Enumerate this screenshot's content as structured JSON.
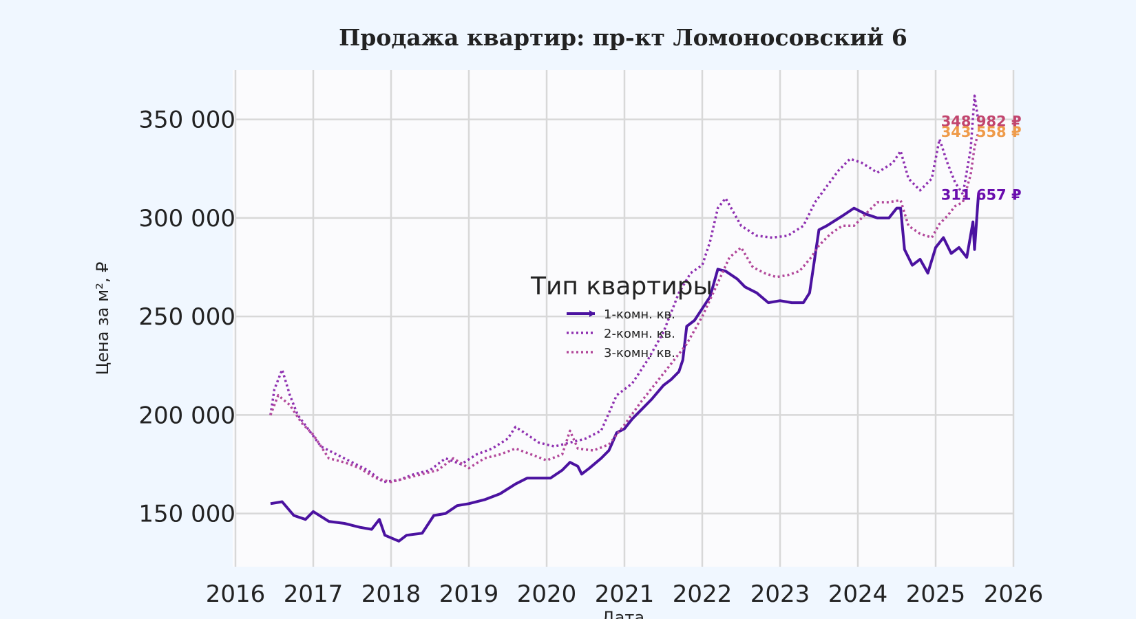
{
  "chart_data": {
    "type": "line",
    "title": "Продажа квартир: пр-кт Ломоносовский 6",
    "xlabel": "Дата",
    "ylabel": "Цена за м², ₽",
    "xlim": [
      2016,
      2026
    ],
    "ylim": [
      123000,
      375000
    ],
    "x_ticks": [
      "2016",
      "2017",
      "2018",
      "2019",
      "2020",
      "2021",
      "2022",
      "2023",
      "2024",
      "2025",
      "2026"
    ],
    "y_ticks": [
      "150 000",
      "200 000",
      "250 000",
      "300 000",
      "350 000"
    ],
    "y_tick_values": [
      150000,
      200000,
      250000,
      300000,
      350000
    ],
    "grid": true,
    "legend": {
      "title": "Тип квартиры",
      "placement": "center"
    },
    "series": [
      {
        "name": "1-комн. кв.",
        "color": "#4b12a0",
        "style": "solid",
        "end_label": "311 657 ₽",
        "end_label_color": "#6a0dad",
        "points": [
          [
            2016.45,
            155000
          ],
          [
            2016.6,
            156000
          ],
          [
            2016.75,
            149000
          ],
          [
            2016.9,
            147000
          ],
          [
            2017.0,
            151000
          ],
          [
            2017.2,
            146000
          ],
          [
            2017.4,
            145000
          ],
          [
            2017.6,
            143000
          ],
          [
            2017.75,
            142000
          ],
          [
            2017.85,
            147000
          ],
          [
            2017.92,
            139000
          ],
          [
            2018.1,
            136000
          ],
          [
            2018.2,
            139000
          ],
          [
            2018.4,
            140000
          ],
          [
            2018.55,
            149000
          ],
          [
            2018.7,
            150000
          ],
          [
            2018.85,
            154000
          ],
          [
            2019.0,
            155000
          ],
          [
            2019.2,
            157000
          ],
          [
            2019.4,
            160000
          ],
          [
            2019.6,
            165000
          ],
          [
            2019.75,
            168000
          ],
          [
            2019.9,
            168000
          ],
          [
            2020.05,
            168000
          ],
          [
            2020.2,
            172000
          ],
          [
            2020.3,
            176000
          ],
          [
            2020.4,
            174000
          ],
          [
            2020.45,
            170000
          ],
          [
            2020.55,
            173000
          ],
          [
            2020.7,
            178000
          ],
          [
            2020.8,
            182000
          ],
          [
            2020.9,
            191000
          ],
          [
            2021.0,
            193000
          ],
          [
            2021.1,
            198000
          ],
          [
            2021.2,
            202000
          ],
          [
            2021.35,
            208000
          ],
          [
            2021.5,
            215000
          ],
          [
            2021.6,
            218000
          ],
          [
            2021.7,
            222000
          ],
          [
            2021.75,
            228000
          ],
          [
            2021.8,
            245000
          ],
          [
            2021.9,
            248000
          ],
          [
            2022.0,
            254000
          ],
          [
            2022.1,
            260000
          ],
          [
            2022.2,
            274000
          ],
          [
            2022.3,
            273000
          ],
          [
            2022.45,
            269000
          ],
          [
            2022.55,
            265000
          ],
          [
            2022.7,
            262000
          ],
          [
            2022.85,
            257000
          ],
          [
            2023.0,
            258000
          ],
          [
            2023.15,
            257000
          ],
          [
            2023.3,
            257000
          ],
          [
            2023.38,
            262000
          ],
          [
            2023.5,
            294000
          ],
          [
            2023.6,
            296000
          ],
          [
            2023.8,
            301000
          ],
          [
            2023.95,
            305000
          ],
          [
            2024.1,
            302000
          ],
          [
            2024.25,
            300000
          ],
          [
            2024.4,
            300000
          ],
          [
            2024.5,
            305000
          ],
          [
            2024.55,
            305000
          ],
          [
            2024.6,
            284000
          ],
          [
            2024.7,
            276000
          ],
          [
            2024.8,
            279000
          ],
          [
            2024.9,
            272000
          ],
          [
            2025.0,
            285000
          ],
          [
            2025.1,
            290000
          ],
          [
            2025.2,
            282000
          ],
          [
            2025.3,
            285000
          ],
          [
            2025.4,
            280000
          ],
          [
            2025.48,
            298000
          ],
          [
            2025.5,
            284000
          ],
          [
            2025.55,
            311657
          ]
        ]
      },
      {
        "name": "2-комн. кв.",
        "color": "#8e2fb0",
        "style": "dotted",
        "end_label": "348 982 ₽",
        "end_label_color": "#c2456e",
        "points": [
          [
            2016.45,
            200000
          ],
          [
            2016.5,
            213000
          ],
          [
            2016.6,
            223000
          ],
          [
            2016.7,
            210000
          ],
          [
            2016.8,
            200000
          ],
          [
            2016.95,
            192000
          ],
          [
            2017.1,
            184000
          ],
          [
            2017.3,
            180000
          ],
          [
            2017.5,
            176000
          ],
          [
            2017.7,
            172000
          ],
          [
            2017.9,
            166000
          ],
          [
            2018.1,
            167000
          ],
          [
            2018.3,
            170000
          ],
          [
            2018.5,
            172000
          ],
          [
            2018.7,
            178000
          ],
          [
            2018.9,
            175000
          ],
          [
            2019.1,
            180000
          ],
          [
            2019.3,
            183000
          ],
          [
            2019.5,
            188000
          ],
          [
            2019.6,
            194000
          ],
          [
            2019.75,
            190000
          ],
          [
            2019.9,
            186000
          ],
          [
            2020.1,
            184000
          ],
          [
            2020.3,
            186000
          ],
          [
            2020.5,
            188000
          ],
          [
            2020.7,
            192000
          ],
          [
            2020.9,
            210000
          ],
          [
            2021.1,
            216000
          ],
          [
            2021.3,
            228000
          ],
          [
            2021.5,
            242000
          ],
          [
            2021.7,
            262000
          ],
          [
            2021.85,
            272000
          ],
          [
            2022.0,
            276000
          ],
          [
            2022.1,
            288000
          ],
          [
            2022.2,
            305000
          ],
          [
            2022.3,
            310000
          ],
          [
            2022.4,
            303000
          ],
          [
            2022.5,
            296000
          ],
          [
            2022.7,
            291000
          ],
          [
            2022.9,
            290000
          ],
          [
            2023.1,
            291000
          ],
          [
            2023.3,
            296000
          ],
          [
            2023.45,
            308000
          ],
          [
            2023.6,
            316000
          ],
          [
            2023.75,
            324000
          ],
          [
            2023.9,
            330000
          ],
          [
            2024.05,
            328000
          ],
          [
            2024.25,
            323000
          ],
          [
            2024.45,
            328000
          ],
          [
            2024.55,
            334000
          ],
          [
            2024.65,
            320000
          ],
          [
            2024.8,
            314000
          ],
          [
            2024.95,
            320000
          ],
          [
            2025.05,
            340000
          ],
          [
            2025.15,
            328000
          ],
          [
            2025.25,
            318000
          ],
          [
            2025.35,
            312000
          ],
          [
            2025.45,
            335000
          ],
          [
            2025.5,
            362000
          ],
          [
            2025.55,
            348982
          ]
        ]
      },
      {
        "name": "3-комн. кв.",
        "color": "#b2479a",
        "style": "dotted",
        "end_label": "343 558 ₽",
        "end_label_color": "#ef9b4a",
        "points": [
          [
            2016.45,
            200000
          ],
          [
            2016.55,
            210000
          ],
          [
            2016.7,
            205000
          ],
          [
            2016.85,
            196000
          ],
          [
            2017.0,
            190000
          ],
          [
            2017.2,
            178000
          ],
          [
            2017.4,
            176000
          ],
          [
            2017.6,
            173000
          ],
          [
            2017.8,
            168000
          ],
          [
            2018.0,
            166000
          ],
          [
            2018.2,
            168000
          ],
          [
            2018.4,
            170000
          ],
          [
            2018.6,
            172000
          ],
          [
            2018.8,
            178000
          ],
          [
            2019.0,
            173000
          ],
          [
            2019.2,
            178000
          ],
          [
            2019.4,
            180000
          ],
          [
            2019.6,
            183000
          ],
          [
            2019.8,
            180000
          ],
          [
            2020.0,
            177000
          ],
          [
            2020.2,
            180000
          ],
          [
            2020.3,
            192000
          ],
          [
            2020.4,
            183000
          ],
          [
            2020.6,
            182000
          ],
          [
            2020.8,
            185000
          ],
          [
            2021.0,
            195000
          ],
          [
            2021.2,
            206000
          ],
          [
            2021.4,
            216000
          ],
          [
            2021.6,
            226000
          ],
          [
            2021.8,
            236000
          ],
          [
            2022.0,
            250000
          ],
          [
            2022.2,
            267000
          ],
          [
            2022.35,
            280000
          ],
          [
            2022.5,
            285000
          ],
          [
            2022.65,
            275000
          ],
          [
            2022.8,
            272000
          ],
          [
            2022.95,
            270000
          ],
          [
            2023.1,
            271000
          ],
          [
            2023.25,
            273000
          ],
          [
            2023.4,
            280000
          ],
          [
            2023.5,
            286000
          ],
          [
            2023.65,
            292000
          ],
          [
            2023.8,
            296000
          ],
          [
            2023.95,
            296000
          ],
          [
            2024.1,
            302000
          ],
          [
            2024.25,
            308000
          ],
          [
            2024.4,
            308000
          ],
          [
            2024.55,
            309000
          ],
          [
            2024.65,
            296000
          ],
          [
            2024.8,
            292000
          ],
          [
            2024.95,
            290000
          ],
          [
            2025.05,
            297000
          ],
          [
            2025.15,
            301000
          ],
          [
            2025.25,
            306000
          ],
          [
            2025.35,
            308000
          ],
          [
            2025.45,
            322000
          ],
          [
            2025.5,
            336000
          ],
          [
            2025.55,
            343558
          ]
        ]
      }
    ]
  }
}
